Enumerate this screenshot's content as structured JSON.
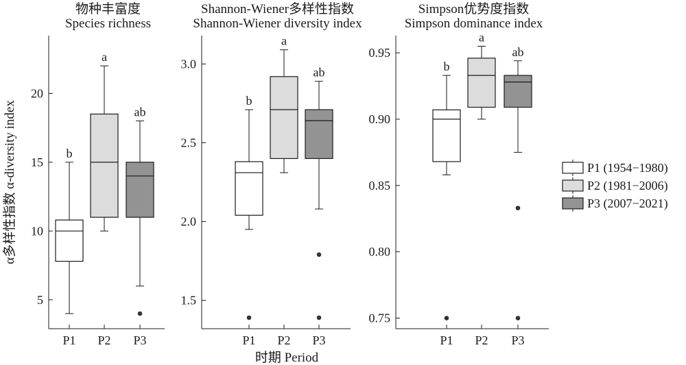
{
  "chart_data": [
    {
      "type": "box",
      "title": "物种丰富度",
      "subtitle": "Species richness",
      "ylabel": "α多样性指数 α-diversity index",
      "ylim": [
        2.9,
        24.2
      ],
      "yticks": [
        5,
        10,
        15,
        20
      ],
      "categories": [
        "P1",
        "P2",
        "P3"
      ],
      "boxes": [
        {
          "min": 4,
          "q1": 7.8,
          "median": 10,
          "q3": 10.8,
          "max": 15,
          "outliers": [],
          "sig": "b"
        },
        {
          "min": 10,
          "q1": 11,
          "median": 15,
          "q3": 18.5,
          "max": 22,
          "outliers": [],
          "sig": "a"
        },
        {
          "min": 6,
          "q1": 11,
          "median": 14,
          "q3": 15,
          "max": 18,
          "outliers": [
            4
          ],
          "sig": "ab"
        }
      ]
    },
    {
      "type": "box",
      "title": "Shannon-Wiener多样性指数",
      "subtitle": "Shannon-Wiener diversity index",
      "ylabel": "",
      "ylim": [
        1.32,
        3.18
      ],
      "yticks": [
        1.5,
        2.0,
        2.5,
        3.0
      ],
      "tick_labels": [
        "1.5",
        "2.0",
        "2.5",
        "3.0"
      ],
      "categories": [
        "P1",
        "P2",
        "P3"
      ],
      "boxes": [
        {
          "min": 1.95,
          "q1": 2.04,
          "median": 2.31,
          "q3": 2.38,
          "max": 2.71,
          "outliers": [
            1.39
          ],
          "sig": "b"
        },
        {
          "min": 2.31,
          "q1": 2.4,
          "median": 2.71,
          "q3": 2.92,
          "max": 3.09,
          "outliers": [],
          "sig": "a"
        },
        {
          "min": 2.08,
          "q1": 2.4,
          "median": 2.64,
          "q3": 2.71,
          "max": 2.89,
          "outliers": [
            1.79,
            1.39
          ],
          "sig": "ab"
        }
      ]
    },
    {
      "type": "box",
      "title": "Simpson优势度指数",
      "subtitle": "Simpson dominance index",
      "ylabel": "",
      "ylim": [
        0.742,
        0.963
      ],
      "yticks": [
        0.75,
        0.8,
        0.85,
        0.9,
        0.95
      ],
      "tick_labels": [
        "0.75",
        "0.80",
        "0.85",
        "0.90",
        "0.95"
      ],
      "categories": [
        "P1",
        "P2",
        "P3"
      ],
      "boxes": [
        {
          "min": 0.858,
          "q1": 0.868,
          "median": 0.9,
          "q3": 0.907,
          "max": 0.933,
          "outliers": [
            0.75
          ],
          "sig": "b"
        },
        {
          "min": 0.9,
          "q1": 0.909,
          "median": 0.933,
          "q3": 0.946,
          "max": 0.955,
          "outliers": [],
          "sig": "a"
        },
        {
          "min": 0.875,
          "q1": 0.909,
          "median": 0.928,
          "q3": 0.933,
          "max": 0.944,
          "outliers": [
            0.833,
            0.75
          ],
          "sig": "ab"
        }
      ]
    }
  ],
  "xlabel": "时期 Period",
  "legend": [
    {
      "label": "P1 (1954−1980)",
      "color": "#ffffff"
    },
    {
      "label": "P2 (1981−2006)",
      "color": "#dcdcdc"
    },
    {
      "label": "P3 (2007−2021)",
      "color": "#939393"
    }
  ],
  "box_colors": [
    "#ffffff",
    "#dcdcdc",
    "#939393"
  ]
}
